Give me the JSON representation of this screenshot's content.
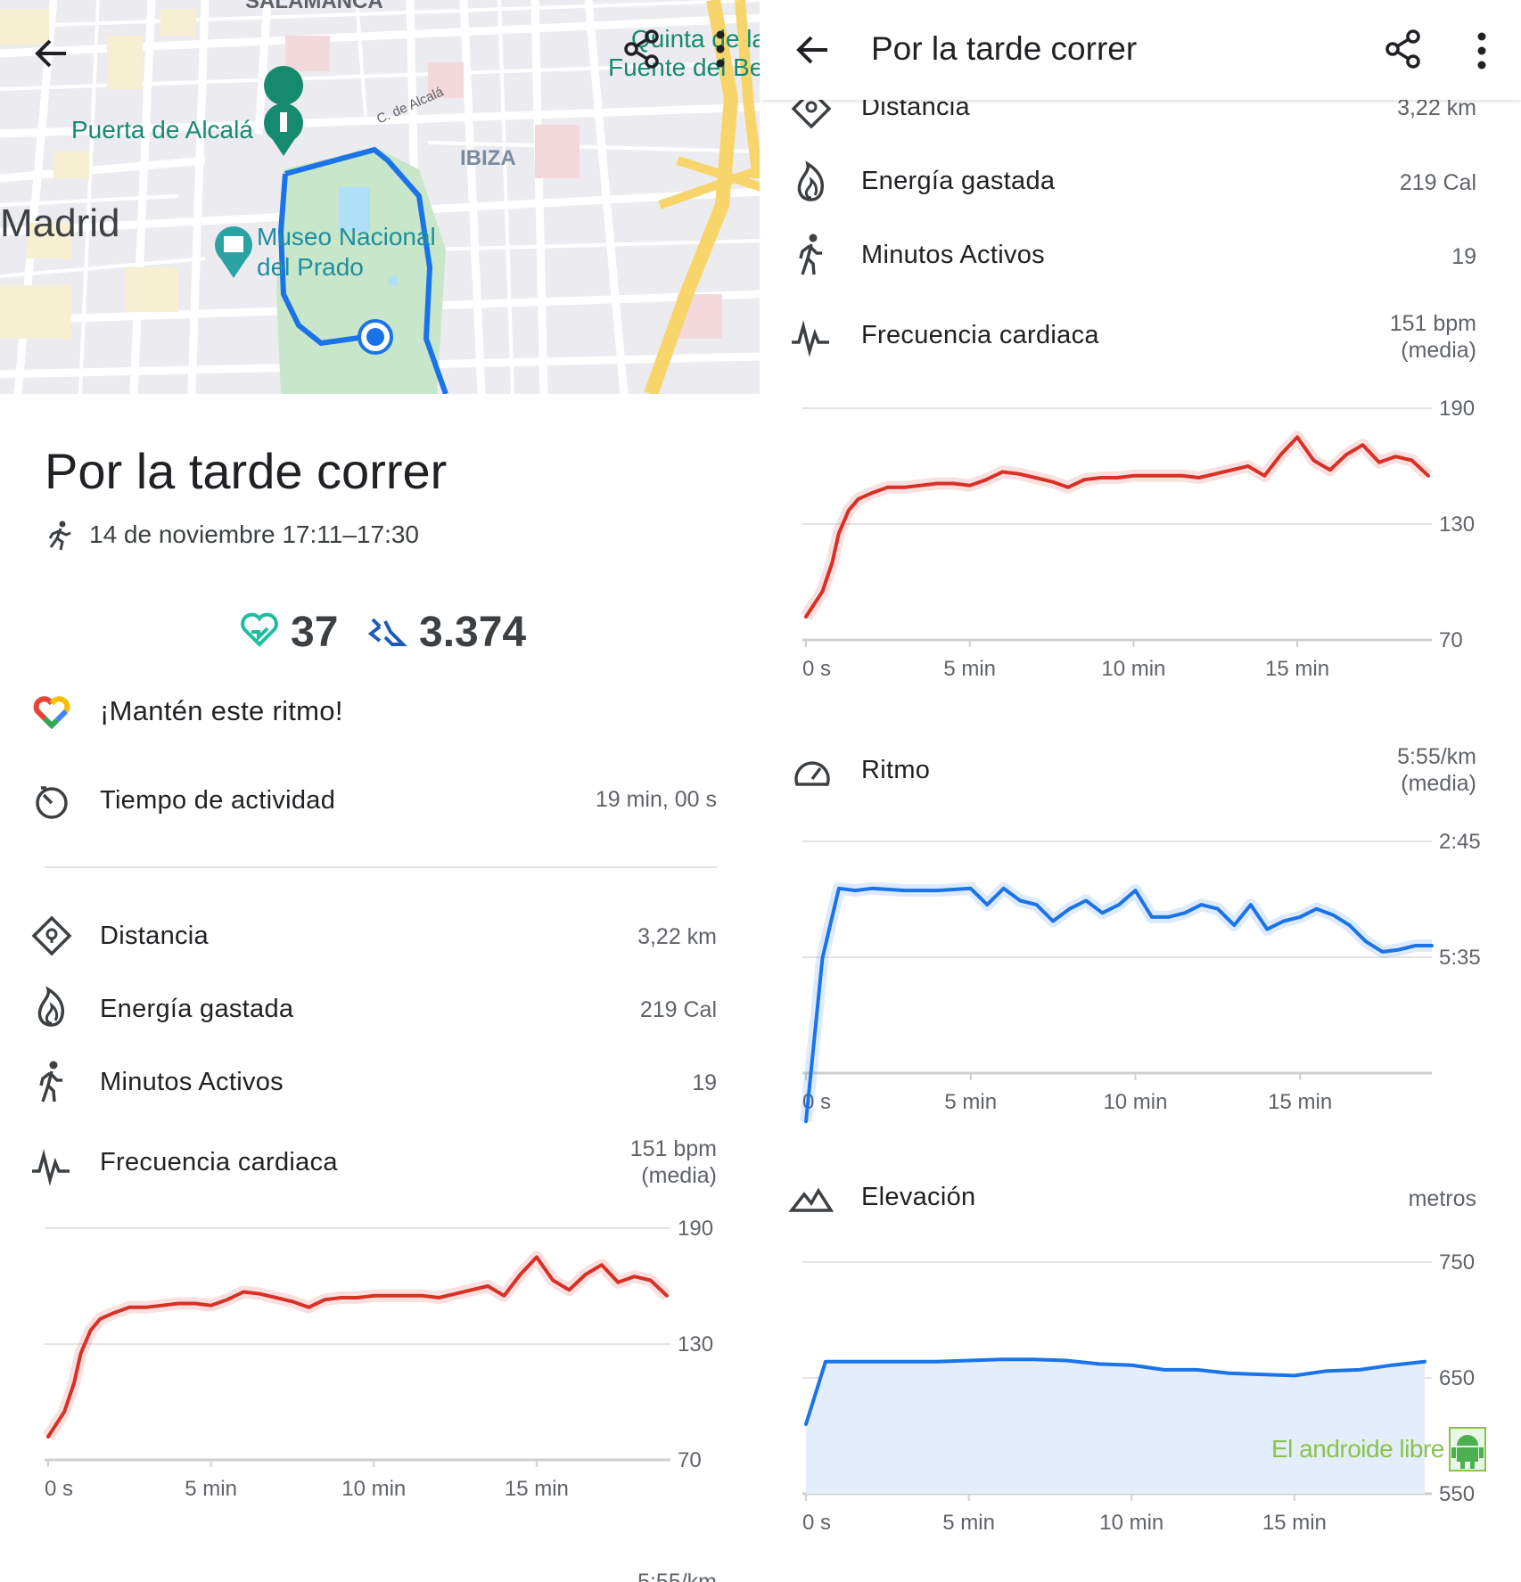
{
  "map": {
    "labels": {
      "salamanca": "SALAMANCA",
      "quinta": "Quinta de la",
      "fuente": "Fuente del Be",
      "puerta": "Puerta de Alcalá",
      "alcala_street": "C. de Alcalá",
      "ibiza": "IBIZA",
      "madrid": "Madrid",
      "museo1": "Museo Nacional",
      "museo2": "del Prado"
    },
    "colors": {
      "route": "#1a73e8",
      "park": "#c8e6c9",
      "highway": "#f7d56b",
      "label_green": "#168a6f"
    }
  },
  "activity": {
    "title": "Por la tarde correr",
    "date": "14 de noviembre 17:11–17:30",
    "heart_points": "37",
    "steps": "3.374",
    "motivation": "¡Mantén este ritmo!",
    "metrics": {
      "active_time": {
        "label": "Tiempo de actividad",
        "value": "19 min, 00 s"
      },
      "distance": {
        "label": "Distancia",
        "value": "3,22 km"
      },
      "energy": {
        "label": "Energía gastada",
        "value": "219 Cal"
      },
      "active_minutes": {
        "label": "Minutos Activos",
        "value": "19"
      },
      "heart_rate": {
        "label": "Frecuencia cardiaca",
        "value1": "151 bpm",
        "value2": "(media)"
      },
      "pace": {
        "label": "Ritmo",
        "value1": "5:55/km",
        "value2": "(media)"
      },
      "elevation": {
        "label": "Elevación",
        "value": "metros"
      }
    },
    "clipped_pace_value": "5:55/km"
  },
  "icons": {
    "back": "arrow-left-icon",
    "share": "share-icon",
    "more": "more-vert-icon",
    "run": "running-person-icon",
    "heart": "heart-points-icon",
    "steps": "steps-icon",
    "fit": "google-fit-logo-icon",
    "timer": "timer-icon",
    "distance": "location-pin-icon",
    "energy": "flame-icon",
    "walk": "walking-person-icon",
    "pulse": "heart-rate-icon",
    "speed": "speedometer-icon",
    "mountain": "mountain-icon"
  },
  "watermark": "El androide libre",
  "chart_data": [
    {
      "type": "line",
      "name_id": "heart-rate-chart",
      "x_unit": "min",
      "x_ticks": [
        "0 s",
        "5 min",
        "10 min",
        "15 min"
      ],
      "y_ticks": [
        "190",
        "130",
        "70"
      ],
      "ylim": [
        70,
        190
      ],
      "xlim": [
        0,
        19
      ],
      "color": "#d93025",
      "x": [
        0,
        0.5,
        0.8,
        1.0,
        1.3,
        1.6,
        2.0,
        2.5,
        3.0,
        3.5,
        4.0,
        4.5,
        5.0,
        5.5,
        6.0,
        6.5,
        7.0,
        7.5,
        8.0,
        8.5,
        9.0,
        9.5,
        10.0,
        10.5,
        11.0,
        11.5,
        12.0,
        12.5,
        13.0,
        13.5,
        14.0,
        14.5,
        15.0,
        15.5,
        16.0,
        16.5,
        17.0,
        17.5,
        18.0,
        18.5,
        19.0
      ],
      "y": [
        82,
        95,
        110,
        125,
        137,
        143,
        146,
        149,
        149,
        150,
        151,
        151,
        150,
        153,
        157,
        156,
        154,
        152,
        149,
        153,
        154,
        154,
        155,
        155,
        155,
        155,
        154,
        156,
        158,
        160,
        155,
        166,
        175,
        163,
        158,
        166,
        171,
        162,
        165,
        163,
        155
      ]
    },
    {
      "type": "line",
      "name_id": "pace-chart",
      "x_unit": "min",
      "x_ticks": [
        "0 s",
        "5 min",
        "10 min",
        "15 min"
      ],
      "y_ticks": [
        "2:45",
        "5:35"
      ],
      "color": "#1a73e8",
      "x": [
        0,
        0.5,
        1.0,
        1.5,
        2.0,
        3.0,
        4.0,
        5.0,
        5.5,
        6.0,
        6.5,
        7.0,
        7.5,
        8.0,
        8.5,
        9.0,
        9.5,
        10.0,
        10.5,
        11.0,
        11.5,
        12.0,
        12.5,
        13.0,
        13.5,
        14.0,
        14.5,
        15.0,
        15.5,
        16.0,
        16.5,
        17.0,
        17.5,
        18.0,
        18.5,
        19.0
      ],
      "y": [
        9.6,
        5.6,
        3.9,
        3.95,
        3.9,
        3.95,
        3.95,
        3.9,
        4.3,
        3.9,
        4.2,
        4.3,
        4.7,
        4.4,
        4.2,
        4.5,
        4.3,
        3.95,
        4.6,
        4.6,
        4.5,
        4.3,
        4.4,
        4.8,
        4.3,
        4.9,
        4.7,
        4.6,
        4.4,
        4.55,
        4.8,
        5.2,
        5.45,
        5.4,
        5.3,
        5.3
      ]
    },
    {
      "type": "area",
      "name_id": "elevation-chart",
      "x_unit": "min",
      "x_ticks": [
        "0 s",
        "5 min",
        "10 min",
        "15 min"
      ],
      "y_ticks": [
        "750",
        "650",
        "550"
      ],
      "ylim": [
        550,
        750
      ],
      "xlim": [
        0,
        19
      ],
      "color": "#1a73e8",
      "x": [
        0,
        0.6,
        1.0,
        2.0,
        3.0,
        4.0,
        5.0,
        6.0,
        7.0,
        8.0,
        9.0,
        10.0,
        11.0,
        12.0,
        13.0,
        14.0,
        15.0,
        16.0,
        17.0,
        18.0,
        19.0
      ],
      "y": [
        610,
        664,
        664,
        664,
        664,
        664,
        665,
        666,
        666,
        665,
        662,
        661,
        657,
        657,
        654,
        653,
        652,
        656,
        657,
        661,
        664
      ]
    }
  ]
}
